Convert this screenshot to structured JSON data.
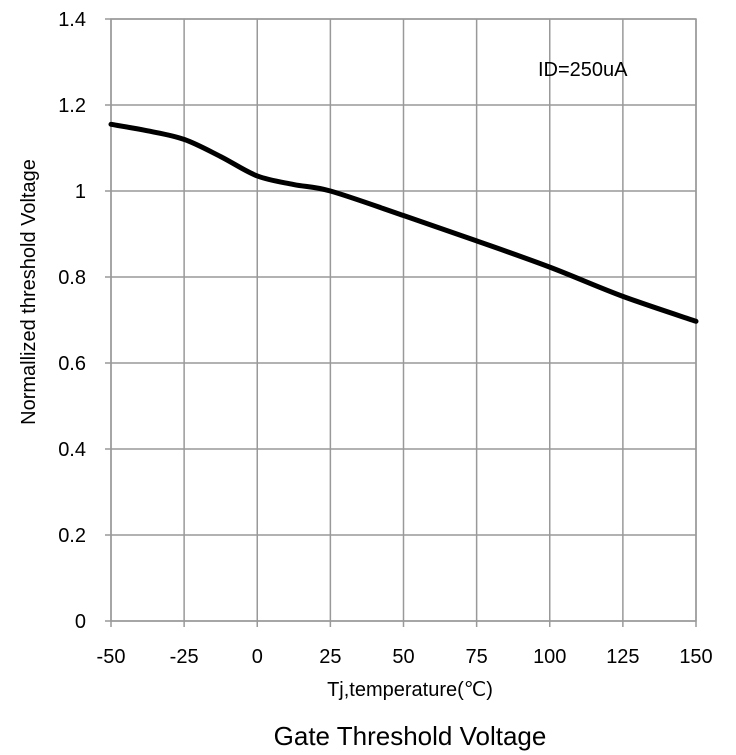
{
  "chart_data": {
    "type": "line",
    "title": "Gate Threshold Voltage",
    "xlabel": "Tj,temperature(℃)",
    "ylabel": "Normallized threshold Voltage",
    "annotation": "ID=250uA",
    "xlim": [
      -50,
      150
    ],
    "ylim": [
      0,
      1.4
    ],
    "x_ticks": [
      -50,
      -25,
      0,
      25,
      50,
      75,
      100,
      125,
      150
    ],
    "y_ticks": [
      0,
      0.2,
      0.4,
      0.6,
      0.8,
      1,
      1.2,
      1.4
    ],
    "grid": true,
    "line_color": "#000000",
    "grid_color": "#999999",
    "series": [
      {
        "x": [
          -50,
          -37.5,
          -25,
          -12.5,
          0,
          12.5,
          25,
          50,
          75,
          100,
          125,
          150
        ],
        "values": [
          1.155,
          1.14,
          1.12,
          1.08,
          1.035,
          1.015,
          1.0,
          0.943,
          0.884,
          0.823,
          0.755,
          0.697
        ]
      }
    ]
  }
}
